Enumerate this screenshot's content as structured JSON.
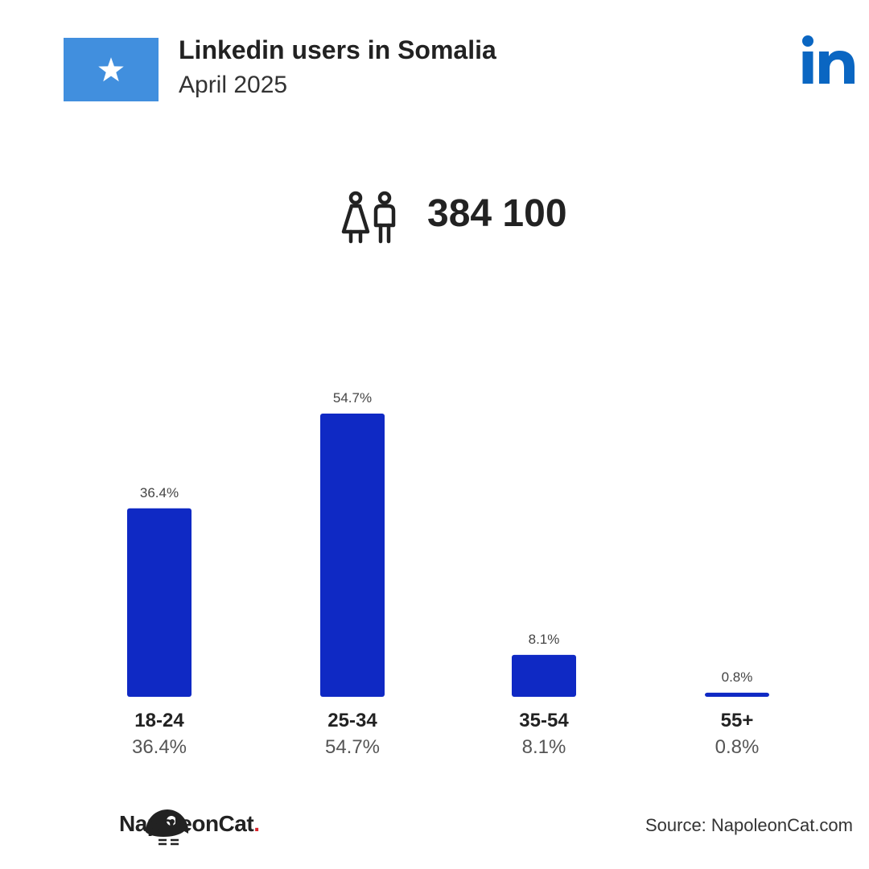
{
  "header": {
    "title": "Linkedin users in Somalia",
    "subtitle": "April 2025",
    "flag_color": "#418fde",
    "flag_icon": "star-icon",
    "brand_icon": "linkedin-logo-icon",
    "brand_color": "#0a66c2"
  },
  "stat": {
    "icon": "users-icon",
    "value": "384 100"
  },
  "chart_data": {
    "type": "bar",
    "categories": [
      "18-24",
      "25-34",
      "35-54",
      "55+"
    ],
    "values": [
      36.4,
      54.7,
      8.1,
      0.8
    ],
    "value_labels": [
      "36.4%",
      "54.7%",
      "8.1%",
      "0.8%"
    ],
    "title": "",
    "xlabel": "",
    "ylabel": "",
    "ylim": [
      0,
      54.7
    ],
    "grid": false,
    "bar_color": "#0f29c4"
  },
  "footer": {
    "brand_name": "NapoleonCat",
    "brand_dot": ".",
    "source": "Source: NapoleonCat.com"
  }
}
